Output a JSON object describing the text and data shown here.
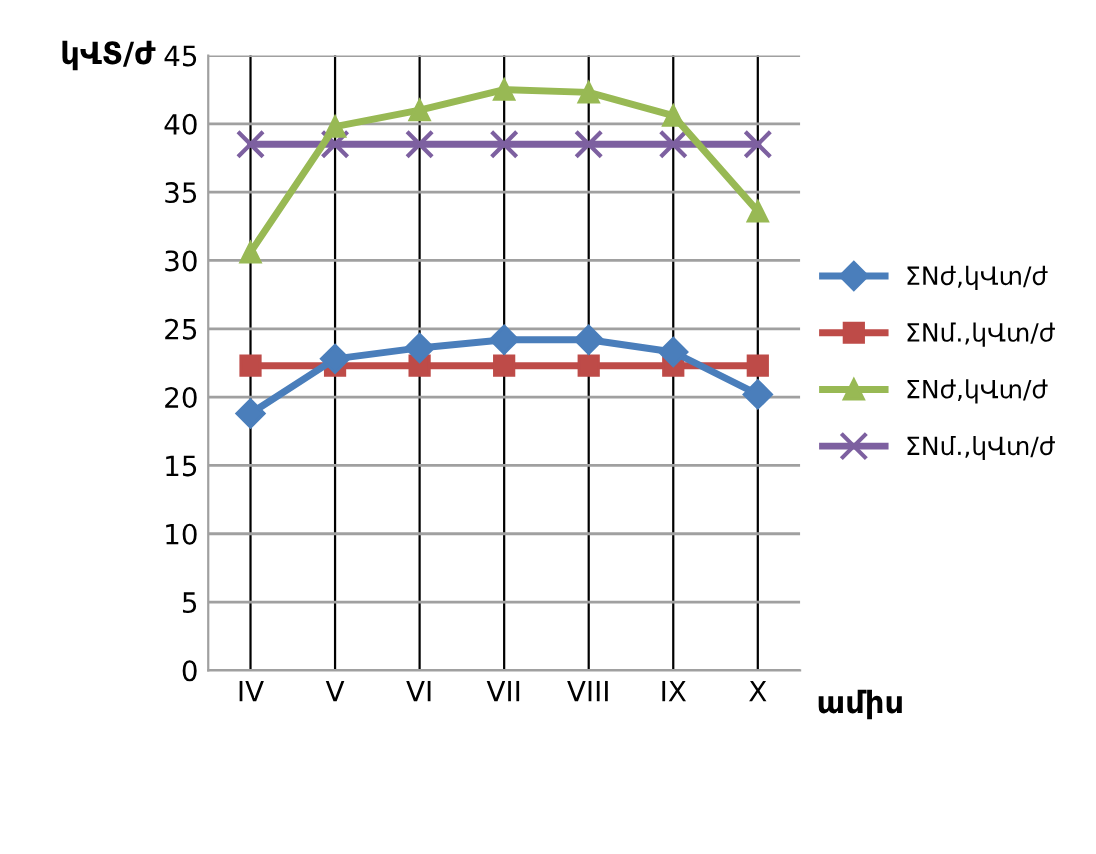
{
  "chart_data": {
    "type": "line",
    "ylabel": "կՎՏ/ժ",
    "xlabel": "ամիս",
    "categories": [
      "IV",
      "V",
      "VI",
      "VII",
      "VIII",
      "IX",
      "X"
    ],
    "series": [
      {
        "name": "ΣNժ,կՎտ/ժ",
        "color": "#4a7ebb",
        "marker": "diamond",
        "values": [
          18.8,
          22.8,
          23.6,
          24.2,
          24.2,
          23.3,
          20.2
        ]
      },
      {
        "name": "ΣNմ.,կՎտ/ժ",
        "color": "#be4b48",
        "marker": "square",
        "values": [
          22.3,
          22.3,
          22.3,
          22.3,
          22.3,
          22.3,
          22.3
        ]
      },
      {
        "name": "ΣNժ,կՎտ/ժ",
        "color": "#98b954",
        "marker": "triangle",
        "values": [
          30.6,
          39.8,
          41.0,
          42.5,
          42.3,
          40.6,
          33.6
        ]
      },
      {
        "name": "ΣNմ.,կՎտ/ժ",
        "color": "#7d60a0",
        "marker": "cross",
        "values": [
          38.5,
          38.5,
          38.5,
          38.5,
          38.5,
          38.5,
          38.5
        ]
      }
    ],
    "ylim": [
      0,
      45
    ],
    "yticks": [
      0,
      5,
      10,
      15,
      20,
      25,
      30,
      35,
      40,
      45
    ],
    "grid": true,
    "legend": "right"
  }
}
